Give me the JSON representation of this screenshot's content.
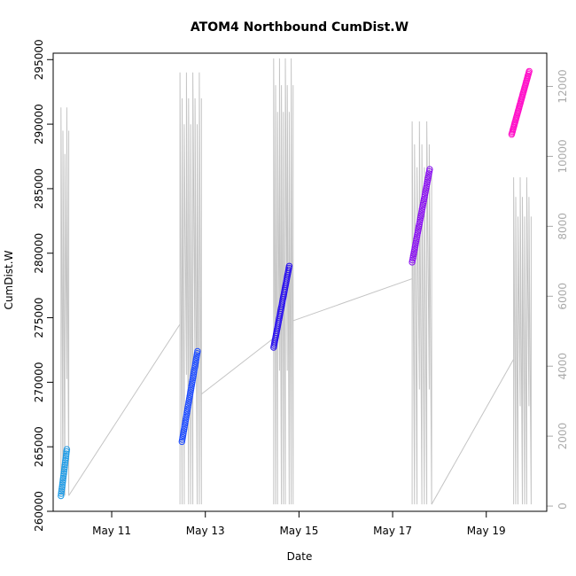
{
  "chart_data": {
    "type": "scatter",
    "title": "ATOM4 Northbound CumDist.W",
    "xlabel": "Date",
    "ylabel": "CumDist.W",
    "x_axis": {
      "type": "date",
      "range": [
        "2019-05-09T18:00",
        "2019-05-20T07:00"
      ],
      "ticks": [
        {
          "value": "2019-05-11",
          "label": "May 11"
        },
        {
          "value": "2019-05-13",
          "label": "May 13"
        },
        {
          "value": "2019-05-15",
          "label": "May 15"
        },
        {
          "value": "2019-05-17",
          "label": "May 17"
        },
        {
          "value": "2019-05-19",
          "label": "May 19"
        }
      ]
    },
    "y_axis_left": {
      "range": [
        260000,
        295500
      ],
      "ticks": [
        260000,
        265000,
        270000,
        275000,
        280000,
        285000,
        290000,
        295000
      ]
    },
    "y_axis_right": {
      "range": [
        -150,
        12950
      ],
      "ticks": [
        0,
        2000,
        4000,
        6000,
        8000,
        10000,
        12000
      ],
      "color": "#aaaaaa"
    },
    "grid": false,
    "legend": "none",
    "series": [
      {
        "color": "#1e9be6",
        "start": "2019-05-09T22:00",
        "end": "2019-05-10T01:00",
        "y_start": 261200,
        "y_end": 264800,
        "n": 22
      },
      {
        "color": "#1e4cff",
        "start": "2019-05-12T12:00",
        "end": "2019-05-12T20:00",
        "y_start": 265400,
        "y_end": 272400,
        "n": 45
      },
      {
        "color": "#2a10ee",
        "start": "2019-05-14T11:00",
        "end": "2019-05-14T19:00",
        "y_start": 272700,
        "y_end": 279000,
        "n": 45
      },
      {
        "color": "#8a10f0",
        "start": "2019-05-17T10:00",
        "end": "2019-05-17T19:00",
        "y_start": 279300,
        "y_end": 286500,
        "n": 45
      },
      {
        "color": "#ff10c8",
        "start": "2019-05-19T13:00",
        "end": "2019-05-19T22:00",
        "y_start": 289200,
        "y_end": 294100,
        "n": 45
      }
    ],
    "secondary_series": {
      "color": "#c4c4c4",
      "axis": "right",
      "segments": [
        {
          "start": "2019-05-09T22:00",
          "end": "2019-05-10T02:00",
          "low": 300,
          "high": 11400,
          "swings": 4
        },
        {
          "start": "2019-05-12T11:00",
          "end": "2019-05-12T22:00",
          "low": 50,
          "high": 12400,
          "swings": 10
        },
        {
          "start": "2019-05-14T11:00",
          "end": "2019-05-14T21:00",
          "low": 50,
          "high": 12800,
          "swings": 10
        },
        {
          "start": "2019-05-17T10:00",
          "end": "2019-05-17T20:00",
          "low": 50,
          "high": 11000,
          "swings": 8
        },
        {
          "start": "2019-05-19T14:00",
          "end": "2019-05-19T23:00",
          "low": 50,
          "high": 9400,
          "swings": 8
        }
      ],
      "connectors": [
        {
          "from": [
            "2019-05-10T02:00",
            300
          ],
          "to": [
            "2019-05-12T11:00",
            5200
          ]
        },
        {
          "from": [
            "2019-05-12T22:00",
            3200
          ],
          "to": [
            "2019-05-14T11:00",
            4800
          ]
        },
        {
          "from": [
            "2019-05-14T21:00",
            5300
          ],
          "to": [
            "2019-05-17T10:00",
            6500
          ]
        },
        {
          "from": [
            "2019-05-17T20:00",
            50
          ],
          "to": [
            "2019-05-19T14:00",
            4200
          ]
        }
      ]
    }
  }
}
